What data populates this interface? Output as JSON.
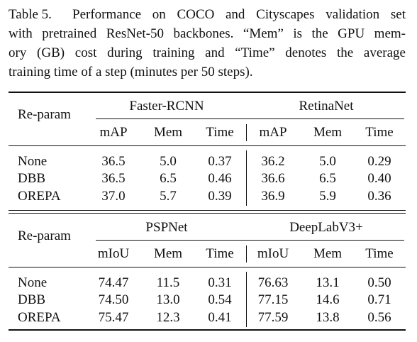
{
  "caption": {
    "label": "Table 5.",
    "lines": [
      "Performance on COCO and Cityscapes validation set",
      "with pretrained ResNet-50 backbones. “Mem” is the GPU mem-",
      "ory (GB) cost during training and “Time” denotes the average",
      "training time of a step (minutes per 50 steps)."
    ]
  },
  "tables": [
    {
      "row_header": "Re-param",
      "groups": [
        {
          "name": "Faster-RCNN",
          "columns": [
            "mAP",
            "Mem",
            "Time"
          ]
        },
        {
          "name": "RetinaNet",
          "columns": [
            "mAP",
            "Mem",
            "Time"
          ]
        }
      ],
      "rows": [
        {
          "label": "None",
          "values": [
            "36.5",
            "5.0",
            "0.37",
            "36.2",
            "5.0",
            "0.29"
          ]
        },
        {
          "label": "DBB",
          "values": [
            "36.5",
            "6.5",
            "0.46",
            "36.6",
            "6.5",
            "0.40"
          ]
        },
        {
          "label": "OREPA",
          "values": [
            "37.0",
            "5.7",
            "0.39",
            "36.9",
            "5.9",
            "0.36"
          ]
        }
      ]
    },
    {
      "row_header": "Re-param",
      "groups": [
        {
          "name": "PSPNet",
          "columns": [
            "mIoU",
            "Mem",
            "Time"
          ]
        },
        {
          "name": "DeepLabV3+",
          "columns": [
            "mIoU",
            "Mem",
            "Time"
          ]
        }
      ],
      "rows": [
        {
          "label": "None",
          "values": [
            "74.47",
            "11.5",
            "0.31",
            "76.63",
            "13.1",
            "0.50"
          ]
        },
        {
          "label": "DBB",
          "values": [
            "74.50",
            "13.0",
            "0.54",
            "77.15",
            "14.6",
            "0.71"
          ]
        },
        {
          "label": "OREPA",
          "values": [
            "75.47",
            "12.3",
            "0.41",
            "77.59",
            "13.8",
            "0.56"
          ]
        }
      ]
    }
  ]
}
